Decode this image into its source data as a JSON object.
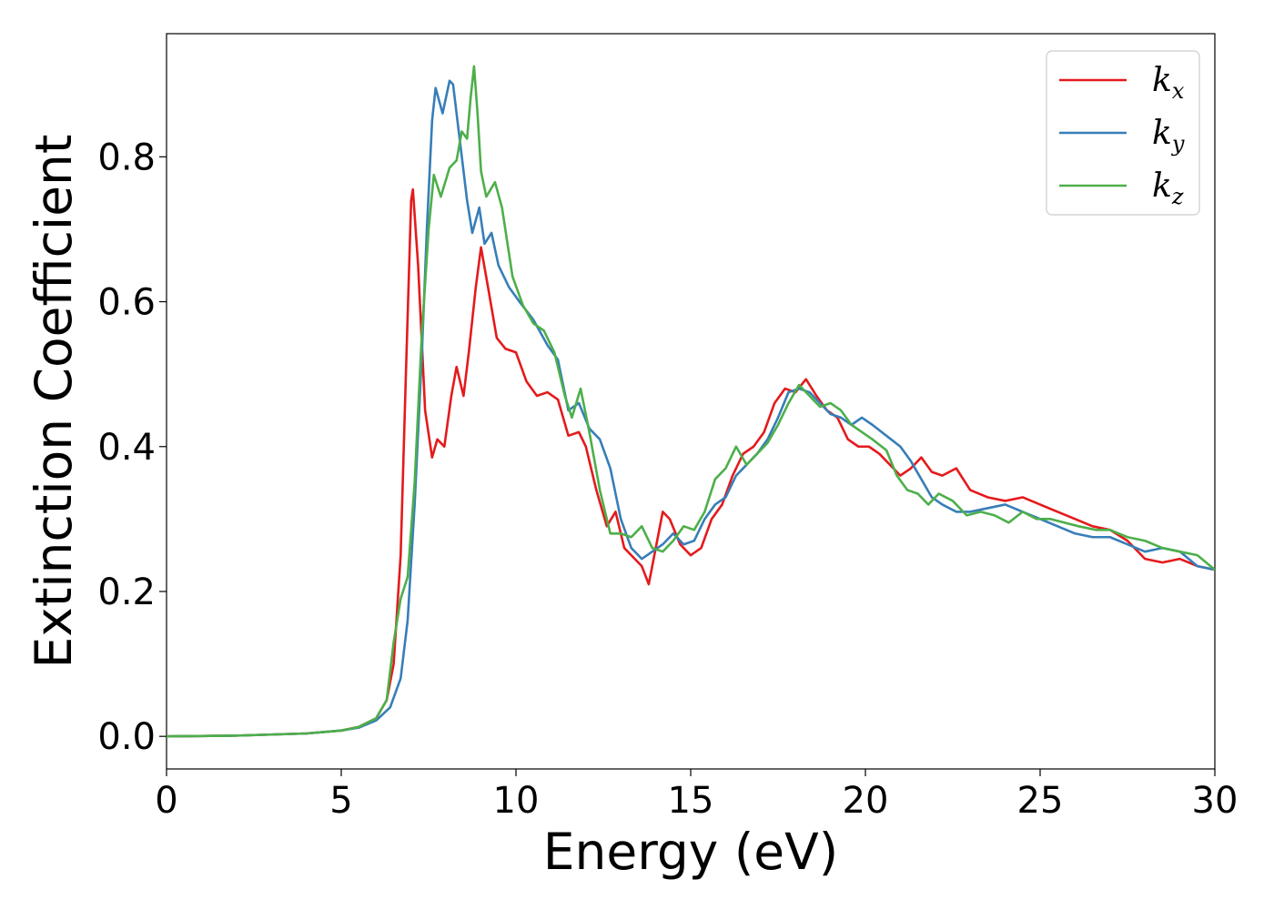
{
  "chart_data": {
    "type": "line",
    "title": "",
    "xlabel": "Energy (eV)",
    "ylabel": "Extinction Coefficient",
    "xlim": [
      0,
      30
    ],
    "ylim": [
      -0.045,
      0.97
    ],
    "xticks": [
      0,
      5,
      10,
      15,
      20,
      25,
      30
    ],
    "xtick_labels": [
      "0",
      "5",
      "10",
      "15",
      "20",
      "25",
      "30"
    ],
    "yticks": [
      0.0,
      0.2,
      0.4,
      0.6,
      0.8
    ],
    "ytick_labels": [
      "0.0",
      "0.2",
      "0.4",
      "0.6",
      "0.8"
    ],
    "grid": false,
    "legend_position": "top-right",
    "series": [
      {
        "name": "k_x",
        "label_main": "k",
        "label_sub": "x",
        "color": "#e41a1c",
        "points": [
          [
            0,
            0
          ],
          [
            2,
            0.001
          ],
          [
            4,
            0.004
          ],
          [
            5,
            0.008
          ],
          [
            5.5,
            0.013
          ],
          [
            6,
            0.025
          ],
          [
            6.3,
            0.05
          ],
          [
            6.5,
            0.1
          ],
          [
            6.7,
            0.25
          ],
          [
            6.85,
            0.5
          ],
          [
            7.0,
            0.74
          ],
          [
            7.05,
            0.755
          ],
          [
            7.2,
            0.65
          ],
          [
            7.4,
            0.45
          ],
          [
            7.6,
            0.385
          ],
          [
            7.75,
            0.41
          ],
          [
            7.95,
            0.4
          ],
          [
            8.15,
            0.47
          ],
          [
            8.3,
            0.51
          ],
          [
            8.5,
            0.47
          ],
          [
            8.65,
            0.53
          ],
          [
            8.85,
            0.62
          ],
          [
            9.0,
            0.675
          ],
          [
            9.2,
            0.62
          ],
          [
            9.45,
            0.55
          ],
          [
            9.7,
            0.535
          ],
          [
            10.0,
            0.53
          ],
          [
            10.3,
            0.49
          ],
          [
            10.6,
            0.47
          ],
          [
            10.9,
            0.475
          ],
          [
            11.2,
            0.465
          ],
          [
            11.5,
            0.415
          ],
          [
            11.8,
            0.42
          ],
          [
            12.0,
            0.4
          ],
          [
            12.3,
            0.34
          ],
          [
            12.6,
            0.29
          ],
          [
            12.85,
            0.31
          ],
          [
            13.1,
            0.26
          ],
          [
            13.4,
            0.245
          ],
          [
            13.6,
            0.235
          ],
          [
            13.8,
            0.21
          ],
          [
            14.0,
            0.26
          ],
          [
            14.2,
            0.31
          ],
          [
            14.4,
            0.3
          ],
          [
            14.7,
            0.265
          ],
          [
            15.0,
            0.25
          ],
          [
            15.3,
            0.26
          ],
          [
            15.6,
            0.3
          ],
          [
            15.9,
            0.32
          ],
          [
            16.2,
            0.36
          ],
          [
            16.5,
            0.39
          ],
          [
            16.8,
            0.4
          ],
          [
            17.1,
            0.42
          ],
          [
            17.4,
            0.46
          ],
          [
            17.7,
            0.48
          ],
          [
            18.0,
            0.475
          ],
          [
            18.3,
            0.493
          ],
          [
            18.6,
            0.47
          ],
          [
            18.9,
            0.45
          ],
          [
            19.2,
            0.44
          ],
          [
            19.5,
            0.41
          ],
          [
            19.8,
            0.4
          ],
          [
            20.1,
            0.4
          ],
          [
            20.4,
            0.39
          ],
          [
            20.7,
            0.375
          ],
          [
            21.0,
            0.36
          ],
          [
            21.3,
            0.37
          ],
          [
            21.6,
            0.385
          ],
          [
            21.9,
            0.365
          ],
          [
            22.2,
            0.36
          ],
          [
            22.6,
            0.37
          ],
          [
            23.0,
            0.34
          ],
          [
            23.5,
            0.33
          ],
          [
            24.0,
            0.325
          ],
          [
            24.5,
            0.33
          ],
          [
            25.0,
            0.32
          ],
          [
            25.5,
            0.31
          ],
          [
            26.0,
            0.3
          ],
          [
            26.5,
            0.29
          ],
          [
            27.0,
            0.285
          ],
          [
            27.5,
            0.27
          ],
          [
            28.0,
            0.245
          ],
          [
            28.5,
            0.24
          ],
          [
            29.0,
            0.245
          ],
          [
            29.5,
            0.235
          ],
          [
            30.0,
            0.23
          ]
        ]
      },
      {
        "name": "k_y",
        "label_main": "k",
        "label_sub": "y",
        "color": "#377eb8",
        "points": [
          [
            0,
            0
          ],
          [
            2,
            0.001
          ],
          [
            4,
            0.004
          ],
          [
            5,
            0.008
          ],
          [
            5.5,
            0.012
          ],
          [
            6,
            0.022
          ],
          [
            6.4,
            0.04
          ],
          [
            6.7,
            0.08
          ],
          [
            6.9,
            0.16
          ],
          [
            7.1,
            0.32
          ],
          [
            7.3,
            0.52
          ],
          [
            7.45,
            0.7
          ],
          [
            7.6,
            0.85
          ],
          [
            7.7,
            0.895
          ],
          [
            7.9,
            0.86
          ],
          [
            8.1,
            0.905
          ],
          [
            8.2,
            0.9
          ],
          [
            8.4,
            0.82
          ],
          [
            8.6,
            0.74
          ],
          [
            8.75,
            0.695
          ],
          [
            8.95,
            0.73
          ],
          [
            9.1,
            0.68
          ],
          [
            9.3,
            0.695
          ],
          [
            9.5,
            0.65
          ],
          [
            9.8,
            0.62
          ],
          [
            10.1,
            0.6
          ],
          [
            10.5,
            0.575
          ],
          [
            10.9,
            0.54
          ],
          [
            11.2,
            0.52
          ],
          [
            11.5,
            0.45
          ],
          [
            11.8,
            0.46
          ],
          [
            12.1,
            0.425
          ],
          [
            12.4,
            0.41
          ],
          [
            12.7,
            0.37
          ],
          [
            13.0,
            0.3
          ],
          [
            13.3,
            0.26
          ],
          [
            13.6,
            0.245
          ],
          [
            13.9,
            0.255
          ],
          [
            14.2,
            0.265
          ],
          [
            14.5,
            0.28
          ],
          [
            14.8,
            0.265
          ],
          [
            15.1,
            0.27
          ],
          [
            15.4,
            0.3
          ],
          [
            15.7,
            0.32
          ],
          [
            16.0,
            0.33
          ],
          [
            16.3,
            0.36
          ],
          [
            16.6,
            0.375
          ],
          [
            16.9,
            0.39
          ],
          [
            17.2,
            0.41
          ],
          [
            17.5,
            0.44
          ],
          [
            17.8,
            0.475
          ],
          [
            18.1,
            0.48
          ],
          [
            18.4,
            0.475
          ],
          [
            18.7,
            0.46
          ],
          [
            19.0,
            0.445
          ],
          [
            19.3,
            0.44
          ],
          [
            19.6,
            0.43
          ],
          [
            19.9,
            0.44
          ],
          [
            20.2,
            0.43
          ],
          [
            20.6,
            0.415
          ],
          [
            21.0,
            0.4
          ],
          [
            21.3,
            0.38
          ],
          [
            21.6,
            0.355
          ],
          [
            21.9,
            0.33
          ],
          [
            22.2,
            0.32
          ],
          [
            22.6,
            0.31
          ],
          [
            23.0,
            0.31
          ],
          [
            23.5,
            0.315
          ],
          [
            24.0,
            0.32
          ],
          [
            24.5,
            0.31
          ],
          [
            25.0,
            0.3
          ],
          [
            25.5,
            0.29
          ],
          [
            26.0,
            0.28
          ],
          [
            26.5,
            0.275
          ],
          [
            27.0,
            0.275
          ],
          [
            27.5,
            0.265
          ],
          [
            28.0,
            0.255
          ],
          [
            28.5,
            0.26
          ],
          [
            29.0,
            0.255
          ],
          [
            29.5,
            0.235
          ],
          [
            30.0,
            0.23
          ]
        ]
      },
      {
        "name": "k_z",
        "label_main": "k",
        "label_sub": "z",
        "color": "#4daf4a",
        "points": [
          [
            0,
            0
          ],
          [
            2,
            0.001
          ],
          [
            4,
            0.004
          ],
          [
            5,
            0.008
          ],
          [
            5.5,
            0.013
          ],
          [
            6,
            0.025
          ],
          [
            6.3,
            0.05
          ],
          [
            6.5,
            0.13
          ],
          [
            6.7,
            0.19
          ],
          [
            6.9,
            0.22
          ],
          [
            7.1,
            0.35
          ],
          [
            7.3,
            0.55
          ],
          [
            7.5,
            0.7
          ],
          [
            7.65,
            0.775
          ],
          [
            7.85,
            0.745
          ],
          [
            8.1,
            0.785
          ],
          [
            8.3,
            0.795
          ],
          [
            8.45,
            0.835
          ],
          [
            8.6,
            0.825
          ],
          [
            8.7,
            0.88
          ],
          [
            8.8,
            0.925
          ],
          [
            8.9,
            0.86
          ],
          [
            9.0,
            0.78
          ],
          [
            9.15,
            0.745
          ],
          [
            9.4,
            0.765
          ],
          [
            9.6,
            0.73
          ],
          [
            9.9,
            0.635
          ],
          [
            10.2,
            0.595
          ],
          [
            10.5,
            0.57
          ],
          [
            10.8,
            0.56
          ],
          [
            11.1,
            0.53
          ],
          [
            11.4,
            0.47
          ],
          [
            11.6,
            0.44
          ],
          [
            11.85,
            0.48
          ],
          [
            12.1,
            0.42
          ],
          [
            12.4,
            0.34
          ],
          [
            12.7,
            0.28
          ],
          [
            13.0,
            0.28
          ],
          [
            13.3,
            0.275
          ],
          [
            13.6,
            0.29
          ],
          [
            13.9,
            0.26
          ],
          [
            14.2,
            0.255
          ],
          [
            14.5,
            0.27
          ],
          [
            14.8,
            0.29
          ],
          [
            15.1,
            0.285
          ],
          [
            15.4,
            0.31
          ],
          [
            15.7,
            0.355
          ],
          [
            16.0,
            0.37
          ],
          [
            16.3,
            0.4
          ],
          [
            16.6,
            0.375
          ],
          [
            16.9,
            0.39
          ],
          [
            17.2,
            0.405
          ],
          [
            17.5,
            0.43
          ],
          [
            17.8,
            0.46
          ],
          [
            18.1,
            0.485
          ],
          [
            18.4,
            0.47
          ],
          [
            18.7,
            0.455
          ],
          [
            19.0,
            0.46
          ],
          [
            19.3,
            0.45
          ],
          [
            19.6,
            0.43
          ],
          [
            19.9,
            0.42
          ],
          [
            20.2,
            0.41
          ],
          [
            20.6,
            0.395
          ],
          [
            20.9,
            0.36
          ],
          [
            21.2,
            0.34
          ],
          [
            21.5,
            0.335
          ],
          [
            21.8,
            0.32
          ],
          [
            22.1,
            0.335
          ],
          [
            22.5,
            0.325
          ],
          [
            22.9,
            0.305
          ],
          [
            23.3,
            0.31
          ],
          [
            23.7,
            0.305
          ],
          [
            24.1,
            0.295
          ],
          [
            24.5,
            0.31
          ],
          [
            24.9,
            0.3
          ],
          [
            25.3,
            0.3
          ],
          [
            25.7,
            0.295
          ],
          [
            26.1,
            0.29
          ],
          [
            26.6,
            0.285
          ],
          [
            27.0,
            0.285
          ],
          [
            27.5,
            0.275
          ],
          [
            28.0,
            0.27
          ],
          [
            28.5,
            0.26
          ],
          [
            29.0,
            0.255
          ],
          [
            29.5,
            0.25
          ],
          [
            30.0,
            0.23
          ]
        ]
      }
    ]
  }
}
